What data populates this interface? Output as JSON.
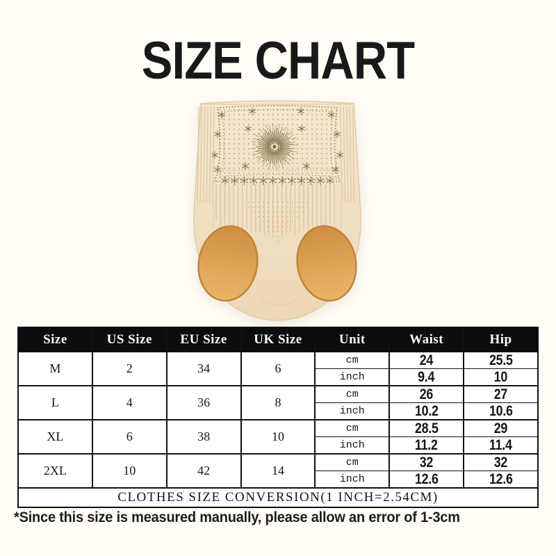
{
  "title": "SIZE CHART",
  "colors": {
    "background": "#fffdf6",
    "fabric": "#f2e1c5",
    "lining": "#d99b48",
    "pattern": "#82704a",
    "header_bg": "#0c0c0c",
    "header_text": "#ffffff",
    "table_border": "#101010"
  },
  "table": {
    "headers": [
      "Size",
      "US Size",
      "EU Size",
      "UK Size",
      "Unit",
      "Waist",
      "Hip"
    ],
    "unit_labels": [
      "cm",
      "inch"
    ],
    "rows": [
      {
        "size": "M",
        "us_size": "2",
        "eu_size": "34",
        "uk_size": "6",
        "cm": {
          "waist": "24",
          "hip": "25.5"
        },
        "inch": {
          "waist": "9.4",
          "hip": "10"
        }
      },
      {
        "size": "L",
        "us_size": "4",
        "eu_size": "36",
        "uk_size": "8",
        "cm": {
          "waist": "26",
          "hip": "27"
        },
        "inch": {
          "waist": "10.2",
          "hip": "10.6"
        }
      },
      {
        "size": "XL",
        "us_size": "6",
        "eu_size": "38",
        "uk_size": "10",
        "cm": {
          "waist": "28.5",
          "hip": "29"
        },
        "inch": {
          "waist": "11.2",
          "hip": "11.4"
        }
      },
      {
        "size": "2XL",
        "us_size": "10",
        "eu_size": "42",
        "uk_size": "14",
        "cm": {
          "waist": "32",
          "hip": "32"
        },
        "inch": {
          "waist": "12.6",
          "hip": "12.6"
        }
      }
    ],
    "footer": "CLOTHES SIZE CONVERSION(1 INCH=2.54CM)"
  },
  "note": "*Since this size is measured manually, please allow an error of 1-3cm"
}
